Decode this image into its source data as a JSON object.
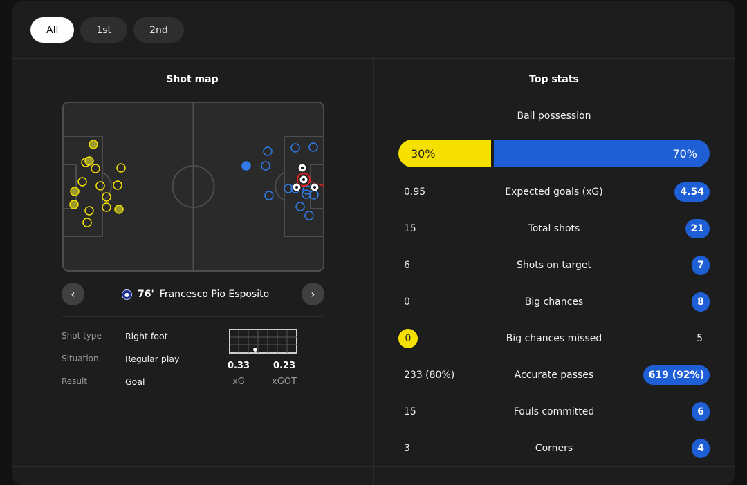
{
  "tabs": [
    {
      "label": "All",
      "active": true
    },
    {
      "label": "1st",
      "active": false
    },
    {
      "label": "2nd",
      "active": false
    }
  ],
  "shot_map": {
    "title": "Shot map",
    "selected_shot": {
      "minute": "76'",
      "player": "Francesco Pio Esposito"
    },
    "details": [
      {
        "label": "Shot type",
        "value": "Right foot"
      },
      {
        "label": "Situation",
        "value": "Regular play"
      },
      {
        "label": "Result",
        "value": "Goal"
      }
    ],
    "xg": {
      "value": "0.33",
      "label": "xG"
    },
    "xgot": {
      "value": "0.23",
      "label": "xGOT"
    }
  },
  "top_stats": {
    "title": "Top stats",
    "possession": {
      "label": "Ball possession",
      "home": "30%",
      "away": "70%",
      "home_fraction": 0.3
    },
    "rows": [
      {
        "name": "Expected goals (xG)",
        "home": "0.95",
        "away": "4.54",
        "highlight": "away"
      },
      {
        "name": "Total shots",
        "home": "15",
        "away": "21",
        "highlight": "away"
      },
      {
        "name": "Shots on target",
        "home": "6",
        "away": "7",
        "highlight": "away"
      },
      {
        "name": "Big chances",
        "home": "0",
        "away": "8",
        "highlight": "away"
      },
      {
        "name": "Big chances missed",
        "home": "0",
        "away": "5",
        "highlight": "home"
      },
      {
        "name": "Accurate passes",
        "home": "233 (80%)",
        "away": "619 (92%)",
        "highlight": "away"
      },
      {
        "name": "Fouls committed",
        "home": "15",
        "away": "6",
        "highlight": "away"
      },
      {
        "name": "Corners",
        "home": "3",
        "away": "4",
        "highlight": "away"
      }
    ]
  },
  "colors": {
    "home": "#f5e000",
    "away": "#1f5fd6",
    "background": "#1d1d1d"
  },
  "icons": {
    "prev": "chevron-left-icon",
    "next": "chevron-right-icon",
    "team_logo": "inter-badge-icon",
    "goal": "football-icon"
  }
}
